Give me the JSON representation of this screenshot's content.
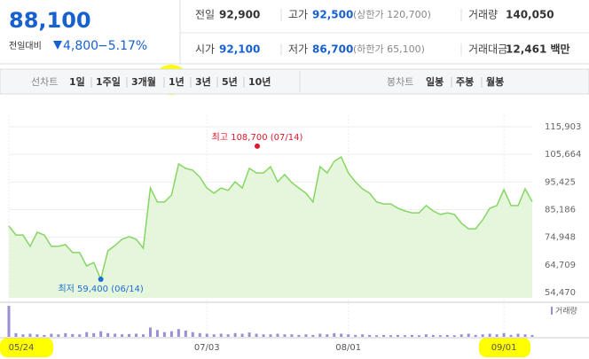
{
  "header": {
    "price": "88,100",
    "change_label": "전일대비",
    "change": "4,800",
    "change_rate": "−5.17%",
    "rows": [
      [
        {
          "label": "전일",
          "value": "92,900"
        },
        {
          "label": "고가",
          "value": "92,500",
          "note": "(상한가 120,700)"
        },
        {
          "label": "거래량",
          "value": "140,050"
        }
      ],
      [
        {
          "label": "시가",
          "value": "92,100"
        },
        {
          "label": "저가",
          "value": "86,700",
          "note": "(하한가 65,100)"
        },
        {
          "label": "거래대금",
          "value": "12,461 백만"
        }
      ]
    ]
  },
  "tabs": {
    "line_label": "선차트",
    "line_items": [
      "1일",
      "1주일",
      "3개월",
      "1년",
      "3년",
      "5년",
      "10년"
    ],
    "candle_label": "봉차트",
    "candle_items": [
      "일봉",
      "주봉",
      "월봉"
    ]
  },
  "chart_data": {
    "type": "area",
    "color": "#86d664",
    "fill": "#e6f6dc",
    "categories": [
      "05/24",
      null,
      null,
      null,
      null,
      null,
      null,
      null,
      null,
      null,
      null,
      null,
      null,
      null,
      null,
      null,
      null,
      null,
      null,
      null,
      null,
      null,
      null,
      null,
      null,
      null,
      null,
      null,
      "07/03",
      null,
      null,
      null,
      null,
      null,
      null,
      null,
      null,
      null,
      null,
      null,
      null,
      null,
      null,
      null,
      null,
      null,
      null,
      null,
      "08/01",
      null,
      null,
      null,
      null,
      null,
      null,
      null,
      null,
      null,
      null,
      null,
      null,
      null,
      null,
      null,
      null,
      null,
      null,
      null,
      null,
      null,
      "09/01",
      null,
      null,
      null,
      null
    ],
    "values": [
      79100,
      75800,
      75800,
      71600,
      76800,
      75800,
      71600,
      71600,
      72200,
      69300,
      69300,
      64300,
      65600,
      59400,
      69900,
      71900,
      74200,
      75200,
      74200,
      70900,
      93200,
      88000,
      88000,
      90600,
      102100,
      100500,
      99800,
      97200,
      93200,
      91300,
      93200,
      92300,
      95500,
      93200,
      100500,
      98800,
      98800,
      101100,
      95500,
      98200,
      95200,
      93200,
      91300,
      88000,
      101100,
      98800,
      103100,
      104700,
      98800,
      95500,
      92900,
      91300,
      88000,
      87300,
      87300,
      85700,
      84700,
      84000,
      84000,
      86700,
      84700,
      83400,
      84000,
      83400,
      80100,
      78100,
      78100,
      81400,
      85700,
      86700,
      92600,
      86700,
      86700,
      92900,
      88100
    ],
    "ylim": [
      54470,
      115903
    ],
    "yticks": [
      {
        "value": 54470,
        "label": "54,470"
      },
      {
        "value": 64709,
        "label": "64,709"
      },
      {
        "value": 74948,
        "label": "74,948"
      },
      {
        "value": 85186,
        "label": "85,186"
      },
      {
        "value": 95425,
        "label": "95,425"
      },
      {
        "value": 105664,
        "label": "105,664"
      },
      {
        "value": 115903,
        "label": "115,903"
      }
    ],
    "max": {
      "text": "최고 108,700 (07/14)",
      "value": 108700,
      "color": "#e0162b"
    },
    "min": {
      "text": "최저 59,400 (06/14)",
      "value": 59400,
      "color": "#1a6fd0"
    },
    "volume": {
      "label": "거래량",
      "color": "#9a8fd4",
      "ylim": [
        0,
        100
      ],
      "values": [
        100,
        12,
        8,
        10,
        8,
        6,
        10,
        8,
        12,
        9,
        8,
        15,
        12,
        18,
        12,
        10,
        8,
        9,
        10,
        8,
        30,
        22,
        15,
        18,
        25,
        20,
        15,
        12,
        10,
        8,
        10,
        8,
        12,
        10,
        14,
        10,
        8,
        8,
        10,
        8,
        8,
        6,
        8,
        6,
        10,
        8,
        12,
        10,
        8,
        6,
        8,
        6,
        5,
        6,
        5,
        6,
        5,
        6,
        5,
        8,
        6,
        5,
        6,
        5,
        8,
        10,
        6,
        8,
        10,
        8,
        12,
        6,
        10,
        8,
        6
      ]
    }
  }
}
